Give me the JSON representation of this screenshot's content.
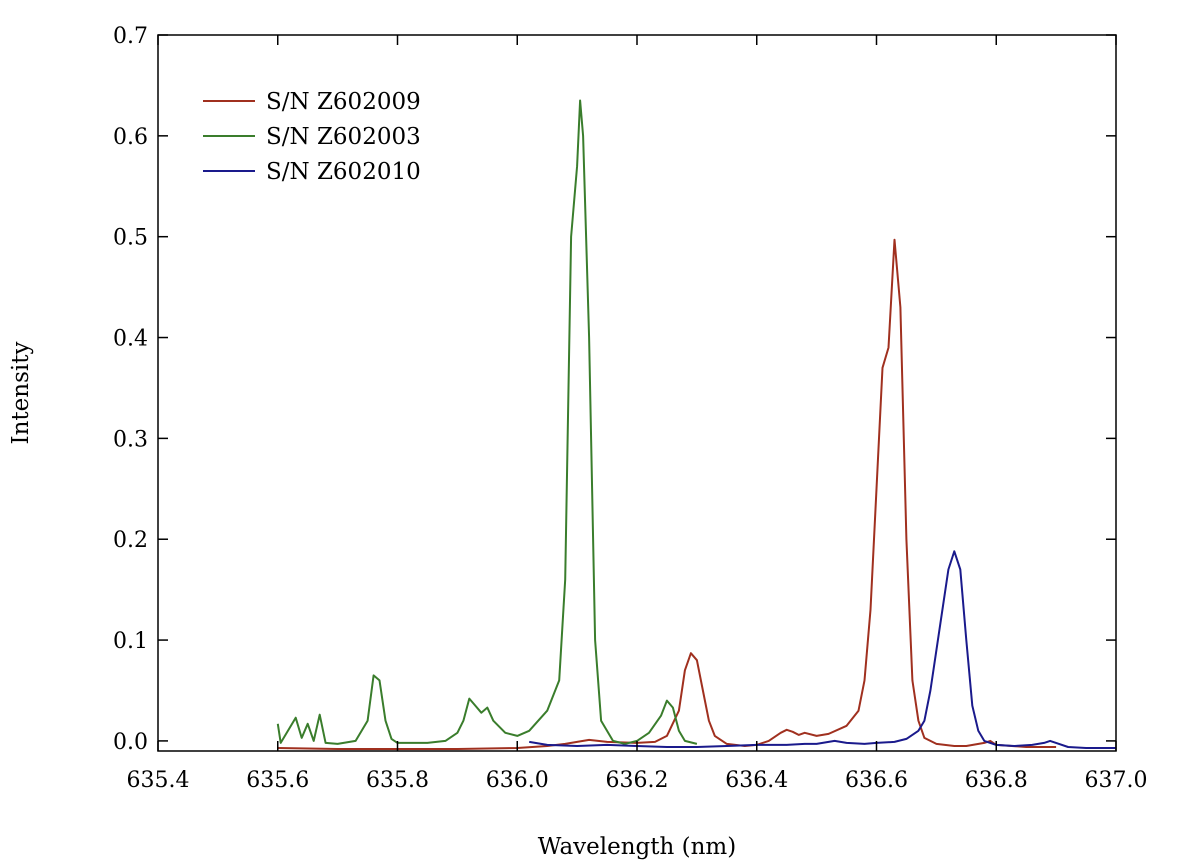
{
  "chart_data": {
    "type": "line",
    "title": "",
    "xlabel": "Wavelength (nm)",
    "ylabel": "Intensity",
    "xlim": [
      635.4,
      637.0
    ],
    "ylim": [
      -0.01,
      0.7
    ],
    "xticks": [
      "635.4",
      "635.6",
      "635.8",
      "636.0",
      "636.2",
      "636.4",
      "636.6",
      "636.8",
      "637.0"
    ],
    "yticks": [
      "0.0",
      "0.1",
      "0.2",
      "0.3",
      "0.4",
      "0.5",
      "0.6",
      "0.7"
    ],
    "grid": false,
    "legend_position": "top-left",
    "series": [
      {
        "name": "S/N Z602009",
        "color": "#a0301f",
        "points": [
          [
            635.6,
            -0.007
          ],
          [
            635.7,
            -0.008
          ],
          [
            635.8,
            -0.008
          ],
          [
            635.9,
            -0.008
          ],
          [
            636.0,
            -0.007
          ],
          [
            636.05,
            -0.005
          ],
          [
            636.08,
            -0.003
          ],
          [
            636.1,
            -0.001
          ],
          [
            636.12,
            0.001
          ],
          [
            636.15,
            -0.001
          ],
          [
            636.2,
            -0.002
          ],
          [
            636.23,
            -0.001
          ],
          [
            636.25,
            0.005
          ],
          [
            636.27,
            0.03
          ],
          [
            636.28,
            0.07
          ],
          [
            636.29,
            0.087
          ],
          [
            636.3,
            0.08
          ],
          [
            636.31,
            0.05
          ],
          [
            636.32,
            0.02
          ],
          [
            636.33,
            0.005
          ],
          [
            636.35,
            -0.003
          ],
          [
            636.38,
            -0.005
          ],
          [
            636.4,
            -0.004
          ],
          [
            636.42,
            0.0
          ],
          [
            636.44,
            0.008
          ],
          [
            636.45,
            0.011
          ],
          [
            636.46,
            0.009
          ],
          [
            636.47,
            0.006
          ],
          [
            636.48,
            0.008
          ],
          [
            636.5,
            0.005
          ],
          [
            636.52,
            0.007
          ],
          [
            636.55,
            0.015
          ],
          [
            636.57,
            0.03
          ],
          [
            636.58,
            0.06
          ],
          [
            636.59,
            0.13
          ],
          [
            636.6,
            0.25
          ],
          [
            636.61,
            0.37
          ],
          [
            636.62,
            0.39
          ],
          [
            636.63,
            0.497
          ],
          [
            636.64,
            0.43
          ],
          [
            636.65,
            0.2
          ],
          [
            636.66,
            0.06
          ],
          [
            636.67,
            0.02
          ],
          [
            636.68,
            0.003
          ],
          [
            636.7,
            -0.003
          ],
          [
            636.73,
            -0.005
          ],
          [
            636.75,
            -0.005
          ],
          [
            636.78,
            -0.002
          ],
          [
            636.79,
            0.0
          ],
          [
            636.8,
            -0.004
          ],
          [
            636.85,
            -0.006
          ],
          [
            636.9,
            -0.006
          ]
        ]
      },
      {
        "name": "S/N Z602003",
        "color": "#3a7d2c",
        "points": [
          [
            635.6,
            0.017
          ],
          [
            635.605,
            -0.002
          ],
          [
            635.63,
            0.023
          ],
          [
            635.64,
            0.003
          ],
          [
            635.65,
            0.017
          ],
          [
            635.66,
            0.0
          ],
          [
            635.67,
            0.026
          ],
          [
            635.68,
            -0.002
          ],
          [
            635.7,
            -0.003
          ],
          [
            635.73,
            0.0
          ],
          [
            635.75,
            0.02
          ],
          [
            635.76,
            0.065
          ],
          [
            635.77,
            0.06
          ],
          [
            635.78,
            0.02
          ],
          [
            635.79,
            0.002
          ],
          [
            635.8,
            -0.002
          ],
          [
            635.85,
            -0.002
          ],
          [
            635.88,
            0.0
          ],
          [
            635.9,
            0.008
          ],
          [
            635.91,
            0.02
          ],
          [
            635.92,
            0.042
          ],
          [
            635.93,
            0.035
          ],
          [
            635.94,
            0.028
          ],
          [
            635.95,
            0.033
          ],
          [
            635.96,
            0.02
          ],
          [
            635.98,
            0.008
          ],
          [
            636.0,
            0.005
          ],
          [
            636.02,
            0.01
          ],
          [
            636.05,
            0.03
          ],
          [
            636.07,
            0.06
          ],
          [
            636.08,
            0.16
          ],
          [
            636.09,
            0.5
          ],
          [
            636.1,
            0.57
          ],
          [
            636.105,
            0.635
          ],
          [
            636.11,
            0.6
          ],
          [
            636.12,
            0.4
          ],
          [
            636.13,
            0.1
          ],
          [
            636.14,
            0.02
          ],
          [
            636.16,
            0.0
          ],
          [
            636.18,
            -0.003
          ],
          [
            636.2,
            0.0
          ],
          [
            636.22,
            0.008
          ],
          [
            636.24,
            0.025
          ],
          [
            636.25,
            0.04
          ],
          [
            636.26,
            0.033
          ],
          [
            636.27,
            0.01
          ],
          [
            636.28,
            0.0
          ],
          [
            636.3,
            -0.003
          ]
        ]
      },
      {
        "name": "S/N Z602010",
        "color": "#1a1a8c",
        "points": [
          [
            636.02,
            -0.001
          ],
          [
            636.05,
            -0.004
          ],
          [
            636.1,
            -0.005
          ],
          [
            636.15,
            -0.004
          ],
          [
            636.2,
            -0.005
          ],
          [
            636.25,
            -0.006
          ],
          [
            636.3,
            -0.006
          ],
          [
            636.35,
            -0.005
          ],
          [
            636.4,
            -0.004
          ],
          [
            636.45,
            -0.004
          ],
          [
            636.48,
            -0.003
          ],
          [
            636.5,
            -0.003
          ],
          [
            636.53,
            0.0
          ],
          [
            636.55,
            -0.002
          ],
          [
            636.58,
            -0.003
          ],
          [
            636.6,
            -0.002
          ],
          [
            636.63,
            -0.001
          ],
          [
            636.65,
            0.002
          ],
          [
            636.67,
            0.01
          ],
          [
            636.68,
            0.02
          ],
          [
            636.69,
            0.05
          ],
          [
            636.7,
            0.09
          ],
          [
            636.71,
            0.13
          ],
          [
            636.72,
            0.17
          ],
          [
            636.73,
            0.188
          ],
          [
            636.74,
            0.17
          ],
          [
            636.75,
            0.1
          ],
          [
            636.76,
            0.035
          ],
          [
            636.77,
            0.01
          ],
          [
            636.78,
            0.0
          ],
          [
            636.8,
            -0.004
          ],
          [
            636.83,
            -0.005
          ],
          [
            636.86,
            -0.004
          ],
          [
            636.88,
            -0.002
          ],
          [
            636.89,
            0.0
          ],
          [
            636.9,
            -0.002
          ],
          [
            636.92,
            -0.006
          ],
          [
            636.95,
            -0.007
          ],
          [
            637.0,
            -0.007
          ]
        ]
      }
    ]
  }
}
